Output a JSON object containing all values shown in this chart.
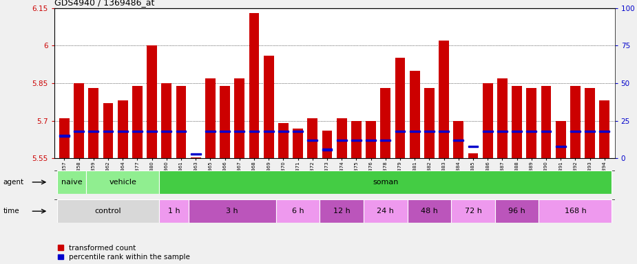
{
  "title": "GDS4940 / 1369486_at",
  "ylim_left": [
    5.55,
    6.15
  ],
  "ylim_right": [
    0,
    100
  ],
  "yticks_left": [
    5.55,
    5.7,
    5.85,
    6.0,
    6.15
  ],
  "yticks_right": [
    0,
    25,
    50,
    75,
    100
  ],
  "ytick_labels_left": [
    "5.55",
    "5.7",
    "5.85",
    "6",
    "6.15"
  ],
  "ytick_labels_right": [
    "0",
    "25",
    "50",
    "75",
    "100 "
  ],
  "samples": [
    "GSM338857",
    "GSM338858",
    "GSM338859",
    "GSM338862",
    "GSM338864",
    "GSM338877",
    "GSM338880",
    "GSM338860",
    "GSM338861",
    "GSM338863",
    "GSM338865",
    "GSM338866",
    "GSM338867",
    "GSM338868",
    "GSM338869",
    "GSM338870",
    "GSM338871",
    "GSM338872",
    "GSM338873",
    "GSM338874",
    "GSM338875",
    "GSM338876",
    "GSM338878",
    "GSM338879",
    "GSM338881",
    "GSM338882",
    "GSM338883",
    "GSM338884",
    "GSM338885",
    "GSM338886",
    "GSM338887",
    "GSM338888",
    "GSM338889",
    "GSM338890",
    "GSM338891",
    "GSM338892",
    "GSM338893",
    "GSM338894"
  ],
  "transformed_count": [
    5.71,
    5.85,
    5.83,
    5.77,
    5.78,
    5.84,
    6.0,
    5.85,
    5.84,
    5.555,
    5.87,
    5.84,
    5.87,
    6.13,
    5.96,
    5.69,
    5.67,
    5.71,
    5.66,
    5.71,
    5.7,
    5.7,
    5.83,
    5.95,
    5.9,
    5.83,
    6.02,
    5.7,
    5.57,
    5.85,
    5.87,
    5.84,
    5.83,
    5.84,
    5.7,
    5.84,
    5.83,
    5.78
  ],
  "percentile_rank": [
    15,
    18,
    18,
    18,
    18,
    18,
    18,
    18,
    18,
    3,
    18,
    18,
    18,
    18,
    18,
    18,
    18,
    12,
    6,
    12,
    12,
    12,
    12,
    18,
    18,
    18,
    18,
    12,
    8,
    18,
    18,
    18,
    18,
    18,
    8,
    18,
    18,
    18
  ],
  "bar_color": "#cc0000",
  "percentile_color": "#0000cc",
  "baseline": 5.55,
  "agent_groups": [
    {
      "label": "naive",
      "start": 0,
      "end": 2,
      "color": "#90ee90"
    },
    {
      "label": "vehicle",
      "start": 2,
      "end": 7,
      "color": "#90ee90"
    },
    {
      "label": "soman",
      "start": 7,
      "end": 38,
      "color": "#44cc44"
    }
  ],
  "time_groups": [
    {
      "label": "control",
      "start": 0,
      "end": 7,
      "color": "#d8d8d8"
    },
    {
      "label": "1 h",
      "start": 7,
      "end": 9,
      "color": "#ee99ee"
    },
    {
      "label": "3 h",
      "start": 9,
      "end": 15,
      "color": "#cc66cc"
    },
    {
      "label": "6 h",
      "start": 15,
      "end": 18,
      "color": "#ee99ee"
    },
    {
      "label": "12 h",
      "start": 18,
      "end": 21,
      "color": "#cc66cc"
    },
    {
      "label": "24 h",
      "start": 21,
      "end": 24,
      "color": "#ee99ee"
    },
    {
      "label": "48 h",
      "start": 24,
      "end": 27,
      "color": "#cc66cc"
    },
    {
      "label": "72 h",
      "start": 27,
      "end": 30,
      "color": "#ee99ee"
    },
    {
      "label": "96 h",
      "start": 30,
      "end": 33,
      "color": "#cc66cc"
    },
    {
      "label": "168 h",
      "start": 33,
      "end": 38,
      "color": "#ee99ee"
    }
  ],
  "background_color": "#f0f0f0",
  "plot_bg": "#ffffff"
}
